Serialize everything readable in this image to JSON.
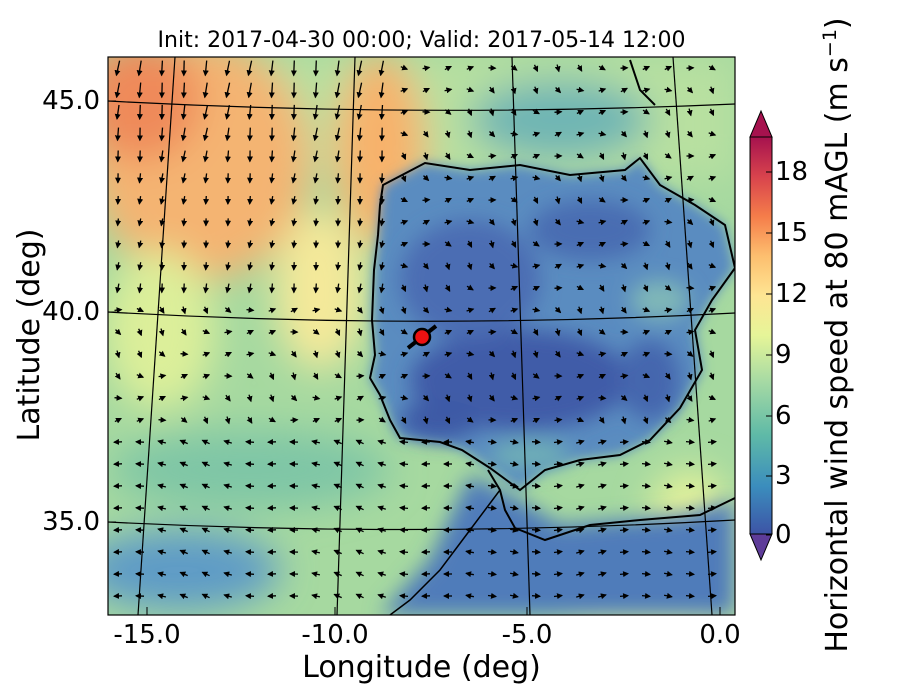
{
  "title": "Init: 2017-04-30 00:00; Valid: 2017-05-14 12:00",
  "xlabel": "Longitude (deg)",
  "ylabel": "Latitude (deg)",
  "colorbar": {
    "label_main": "Horizontal wind speed at 80 mAGL (m s",
    "label_exp": "−1",
    "label_close": ")",
    "ticks": [
      "0",
      "3",
      "6",
      "9",
      "12",
      "15",
      "18"
    ],
    "tick_values": [
      0,
      3,
      6,
      9,
      12,
      15,
      18
    ],
    "range": [
      0,
      20
    ],
    "extend": "both",
    "colormap": "Spectral_r"
  },
  "x_ticks": [
    {
      "label": "-15.0",
      "value": -15
    },
    {
      "label": "-10.0",
      "value": -10
    },
    {
      "label": "-5.0",
      "value": -5
    },
    {
      "label": "0.0",
      "value": 0
    }
  ],
  "y_ticks": [
    {
      "label": "35.0",
      "value": 35
    },
    {
      "label": "40.0",
      "value": 40
    },
    {
      "label": "45.0",
      "value": 45
    }
  ],
  "map": {
    "extent_lon": [
      -15.9,
      0.4
    ],
    "extent_lat": [
      33.0,
      46.2
    ],
    "marker": {
      "lon": -7.6,
      "lat": 39.3,
      "color": "#ee1111"
    },
    "land_color": "#4a72b4",
    "sea_color": "#9ed3a2",
    "jet_color": "#f6a766"
  }
}
